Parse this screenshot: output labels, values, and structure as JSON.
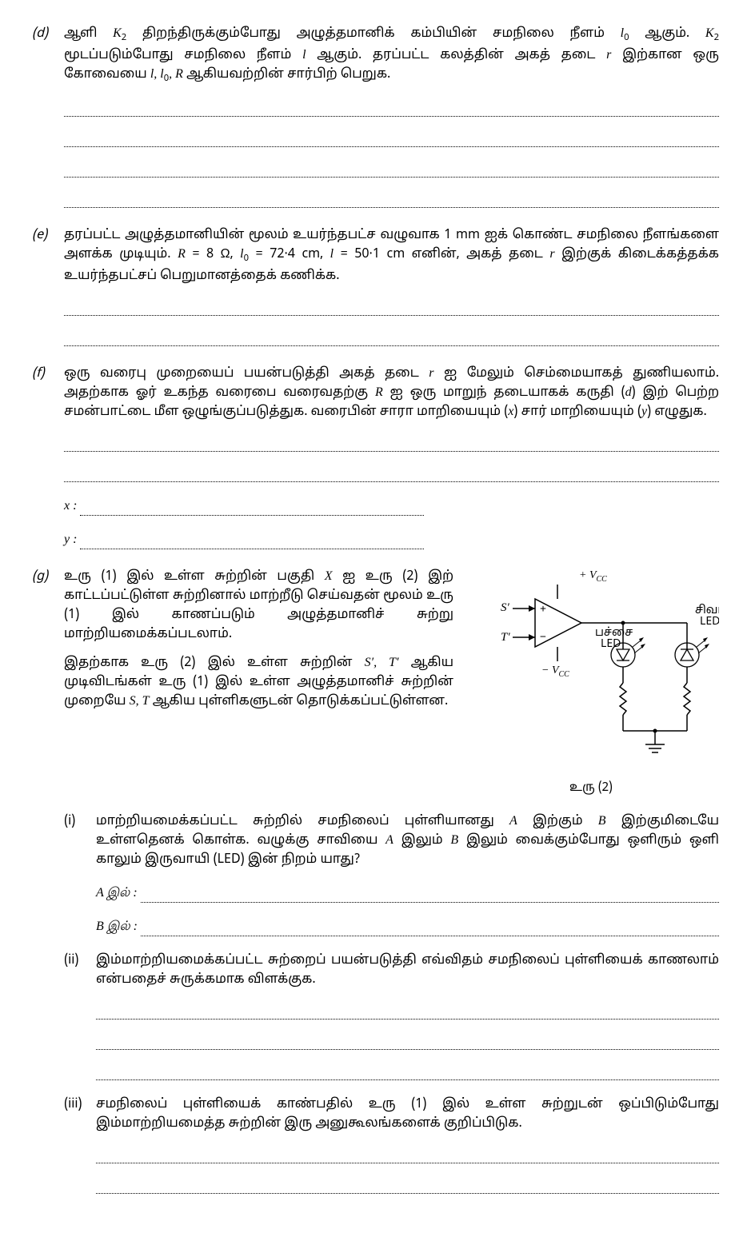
{
  "parts": {
    "d": {
      "label": "(d)",
      "text": "ஆளி <span class=\"math-i\">K</span><span class=\"sub\">2</span> திறந்திருக்கும்போது அழுத்தமானிக் கம்பியின் சமநிலை நீளம் <span class=\"math-i\">l</span><span class=\"sub\">0</span> ஆகும். <span class=\"math-i\">K</span><span class=\"sub\">2</span> மூடப்படும்போது சமநிலை நீளம் <span class=\"math-i\">l</span> ஆகும். தரப்பட்ட கலத்தின் அகத் தடை <span class=\"math-i\">r</span> இற்கான ஒரு கோவையை <span class=\"math-i\">l, l</span><span class=\"sub\">0</span><span class=\"math-i\">, R</span> ஆகியவற்றின் சார்பிற் பெறுக.",
      "blank_lines": 4
    },
    "e": {
      "label": "(e)",
      "text": "தரப்பட்ட அழுத்தமானியின் மூலம் உயர்ந்தபட்ச வழுவாக 1 mm ஐக் கொண்ட சமநிலை நீளங்களை அளக்க முடியும். <span class=\"math-i\">R</span> = 8 Ω, <span class=\"math-i\">l</span><span class=\"sub\">0</span> = 72·4 cm, <span class=\"math-i\">l</span> = 50·1 cm எனின், அகத் தடை <span class=\"math-i\">r</span> இற்குக் கிடைக்கத்தக்க உயர்ந்தபட்சப் பெறுமானத்தைக் கணிக்க.",
      "blank_lines": 2
    },
    "f": {
      "label": "(f)",
      "text": "ஒரு வரைபு முறையைப் பயன்படுத்தி அகத் தடை <span class=\"math-i\">r</span> ஐ மேலும் செம்மையாகத் துணியலாம். அதற்காக ஓர் உகந்த வரைபை வரைவதற்கு <span class=\"math-i\">R</span> ஐ ஒரு மாறுந் தடையாகக் கருதி (<span class=\"math-i\">d</span>) இற் பெற்ற சமன்பாட்டை மீள ஒழுங்குப்படுத்துக. வரைபின் சாரா மாறியையும் (<span class=\"math-i\">x</span>) சார் மாறியையும் (<span class=\"math-i\">y</span>) எழுதுக.",
      "blank_lines": 2,
      "x_label": "x :",
      "y_label": "y :"
    },
    "g": {
      "label": "(g)",
      "intro1": "உரு (1) இல் உள்ள சுற்றின் பகுதி <span class=\"math-i\">X</span> ஐ உரு (2) இற் காட்டப்பட்டுள்ள சுற்றினால் மாற்றீடு செய்வதன் மூலம் உரு (1) இல் காணப்படும் அழுத்தமானிச் சுற்று மாற்றியமைக்கப்படலாம்.",
      "intro2": "இதற்காக உரு (2) இல் உள்ள சுற்றின் <span class=\"math-i\">S′, T′</span> ஆகிய முடிவிடங்கள் உரு (1) இல் உள்ள அழுத்தமானிச் சுற்றின் முறையே <span class=\"math-i\">S, T</span> ஆகிய புள்ளிகளுடன் தொடுக்கப்பட்டுள்ளன.",
      "figure": {
        "s_prime": "S′",
        "t_prime": "T′",
        "vcc_plus": "+ V",
        "vcc_minus": "− V",
        "cc_sub": "CC",
        "plus": "+",
        "minus": "−",
        "green_led": "பச்சை LED",
        "red_led": "சிவப்பு LED",
        "caption": "உரு (2)"
      },
      "sub": {
        "i": {
          "label": "(i)",
          "text": "மாற்றியமைக்கப்பட்ட சுற்றில் சமநிலைப் புள்ளியானது <span class=\"math-i\">A</span> இற்கும் <span class=\"math-i\">B</span> இற்குமிடையே உள்ளதெனக் கொள்க. வழுக்கு சாவியை <span class=\"math-i\">A</span> இலும் <span class=\"math-i\">B</span> இலும் வைக்கும்போது ஒளிரும் ஒளி காலும் இருவாயி (LED) இன் நிறம் யாது?",
          "a_label": "A இல் :",
          "b_label": "B இல் :"
        },
        "ii": {
          "label": "(ii)",
          "text": "இம்மாற்றியமைக்கப்பட்ட சுற்றைப் பயன்படுத்தி எவ்விதம் சமநிலைப் புள்ளியைக் காணலாம் என்பதைச் சுருக்கமாக விளக்குக.",
          "blank_lines": 3
        },
        "iii": {
          "label": "(iii)",
          "text": "சமநிலைப் புள்ளியைக் காண்பதில் உரு (1) இல் உள்ள சுற்றுடன் ஒப்பிடும்போது இம்மாற்றியமைத்த சுற்றின் இரு அனுகூலங்களைக் குறிப்பிடுக.",
          "blank_lines": 2
        }
      }
    }
  }
}
